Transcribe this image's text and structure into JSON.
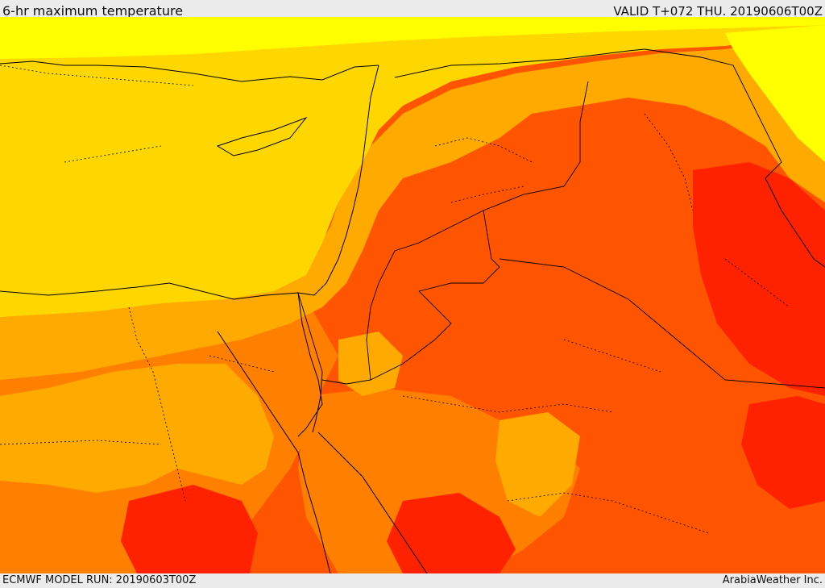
{
  "header": {
    "title": "6-hr maximum temperature",
    "valid_time": "VALID T+072 THU. 20190606T00Z"
  },
  "footer": {
    "model_run": "ECMWF MODEL RUN: 20190603T00Z",
    "credit": "ArabiaWeather Inc."
  },
  "map": {
    "field": "6-hr maximum temperature",
    "palette": {
      "level_1": "#ffff00",
      "level_2": "#ffd700",
      "level_3": "#ffaa00",
      "level_4": "#ff8000",
      "level_5": "#ff5500",
      "level_6": "#ff2200",
      "border_color": "#000000"
    }
  }
}
